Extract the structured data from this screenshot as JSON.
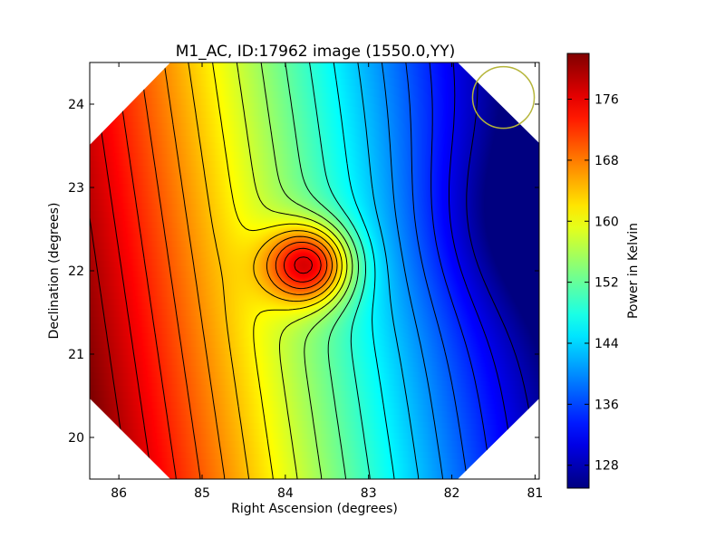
{
  "chart_data": {
    "type": "heatmap",
    "title": "M1_AC, ID:17962 image (1550.0,YY)",
    "xlabel": "Right Ascension (degrees)",
    "ylabel": "Declination (degrees)",
    "xlim": [
      86.35,
      80.95
    ],
    "ylim": [
      19.5,
      24.5
    ],
    "x_ticks": [
      86,
      85,
      84,
      83,
      82,
      81
    ],
    "y_ticks": [
      20,
      21,
      22,
      23,
      24
    ],
    "x_tick_labels": [
      "86",
      "85",
      "84",
      "83",
      "82",
      "81"
    ],
    "y_tick_labels": [
      "20",
      "21",
      "22",
      "23",
      "24"
    ],
    "colorbar": {
      "label": "Power in Kelvin",
      "min": 125,
      "max": 182,
      "ticks": [
        128,
        136,
        144,
        152,
        160,
        168,
        176
      ],
      "tick_labels": [
        "128",
        "136",
        "144",
        "152",
        "160",
        "168",
        "176"
      ],
      "colormap": "jet"
    },
    "field": {
      "base_value_at_left": 180,
      "gradient_per_degree_ra": 10.3,
      "gradient_per_degree_dec": -1.5,
      "peak": {
        "ra": 83.72,
        "dec": 22.07,
        "value": 170
      },
      "valley": {
        "ra": 81.1,
        "dec": 22.6,
        "value": 126
      }
    },
    "footprint": "octagon",
    "contour_levels": [
      128,
      131,
      134,
      137,
      140,
      143,
      146,
      149,
      152,
      155,
      158,
      161,
      164,
      167,
      170,
      173,
      176,
      179
    ],
    "beam_marker": {
      "ra": 81.38,
      "dec": 24.08,
      "radius_deg": 0.37,
      "color": "#b5b53a"
    }
  }
}
